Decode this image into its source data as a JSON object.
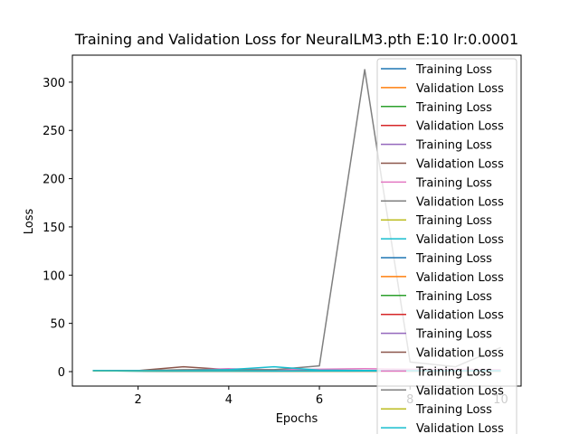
{
  "chart_data": {
    "type": "line",
    "title": "Training and Validation Loss for NeuralLM3.pth E:10 lr:0.0001",
    "xlabel": "Epochs",
    "ylabel": "Loss",
    "xlim": [
      0.55,
      10.45
    ],
    "ylim": [
      -15,
      328
    ],
    "xticks": [
      2,
      4,
      6,
      8,
      10
    ],
    "yticks": [
      0,
      50,
      100,
      150,
      200,
      250,
      300
    ],
    "grid": false,
    "legend_position": "upper-right",
    "x": [
      1,
      2,
      3,
      4,
      5,
      6,
      7,
      8,
      9,
      10
    ],
    "series": [
      {
        "name": "Training Loss",
        "color": "#1f77b4",
        "values": [
          0.8,
          0.6,
          0.5,
          0.5,
          0.4,
          0.4,
          0.4,
          0.4,
          0.4,
          0.4
        ]
      },
      {
        "name": "Validation Loss",
        "color": "#ff7f0e",
        "values": [
          0.9,
          0.7,
          0.6,
          0.6,
          0.5,
          0.5,
          0.5,
          0.5,
          0.5,
          0.5
        ]
      },
      {
        "name": "Training Loss",
        "color": "#2ca02c",
        "values": [
          0.7,
          0.6,
          0.5,
          0.5,
          0.5,
          0.4,
          0.4,
          0.4,
          0.4,
          0.4
        ]
      },
      {
        "name": "Validation Loss",
        "color": "#d62728",
        "values": [
          0.9,
          0.8,
          0.7,
          0.7,
          0.6,
          0.6,
          0.6,
          0.6,
          0.6,
          0.6
        ]
      },
      {
        "name": "Training Loss",
        "color": "#9467bd",
        "values": [
          0.8,
          0.7,
          1.0,
          0.9,
          0.8,
          0.7,
          0.7,
          0.6,
          0.6,
          0.6
        ]
      },
      {
        "name": "Validation Loss",
        "color": "#8c564b",
        "values": [
          1.0,
          1.0,
          5.0,
          2.0,
          1.5,
          1.5,
          1.2,
          1.2,
          1.1,
          1.0
        ]
      },
      {
        "name": "Training Loss",
        "color": "#e377c2",
        "values": [
          0.9,
          0.8,
          1.5,
          3.0,
          2.0,
          2.5,
          3.0,
          2.5,
          2.5,
          2.0
        ]
      },
      {
        "name": "Validation Loss",
        "color": "#7f7f7f",
        "values": [
          1.0,
          1.0,
          2.0,
          2.0,
          2.0,
          6.0,
          313.0,
          10.0,
          5.0,
          25.0
        ]
      },
      {
        "name": "Training Loss",
        "color": "#bcbd22",
        "values": [
          0.8,
          0.7,
          0.6,
          0.6,
          0.6,
          0.5,
          0.5,
          0.5,
          0.5,
          0.5
        ]
      },
      {
        "name": "Validation Loss",
        "color": "#17becf",
        "values": [
          1.0,
          0.9,
          1.0,
          2.0,
          5.0,
          1.5,
          1.2,
          1.0,
          1.0,
          1.0
        ]
      },
      {
        "name": "Training Loss",
        "color": "#1f77b4",
        "values": [
          0.7,
          0.6,
          0.5,
          0.5,
          0.5,
          0.4,
          0.4,
          0.4,
          0.4,
          0.4
        ]
      },
      {
        "name": "Validation Loss",
        "color": "#ff7f0e",
        "values": [
          0.9,
          0.8,
          0.7,
          0.7,
          0.7,
          0.6,
          0.6,
          0.6,
          0.6,
          0.6
        ]
      },
      {
        "name": "Training Loss",
        "color": "#2ca02c",
        "values": [
          0.8,
          0.7,
          0.6,
          0.6,
          0.5,
          0.5,
          0.5,
          0.5,
          0.5,
          0.5
        ]
      },
      {
        "name": "Validation Loss",
        "color": "#d62728",
        "values": [
          0.9,
          0.8,
          0.8,
          0.7,
          0.7,
          0.7,
          0.6,
          0.6,
          0.6,
          0.6
        ]
      },
      {
        "name": "Training Loss",
        "color": "#9467bd",
        "values": [
          0.8,
          0.7,
          0.6,
          0.6,
          0.6,
          0.5,
          0.5,
          0.5,
          0.5,
          0.5
        ]
      },
      {
        "name": "Validation Loss",
        "color": "#8c564b",
        "values": [
          1.0,
          0.9,
          0.8,
          0.8,
          0.8,
          0.7,
          0.7,
          0.7,
          0.7,
          0.7
        ]
      },
      {
        "name": "Training Loss",
        "color": "#e377c2",
        "values": [
          0.8,
          0.7,
          0.6,
          0.6,
          0.6,
          0.6,
          0.5,
          0.5,
          0.5,
          0.5
        ]
      },
      {
        "name": "Validation Loss",
        "color": "#7f7f7f",
        "values": [
          1.0,
          0.9,
          0.9,
          0.8,
          0.8,
          0.8,
          0.7,
          0.7,
          0.7,
          0.7
        ]
      },
      {
        "name": "Training Loss",
        "color": "#bcbd22",
        "values": [
          0.8,
          0.7,
          0.6,
          0.6,
          0.6,
          0.5,
          0.5,
          0.5,
          0.5,
          0.5
        ]
      },
      {
        "name": "Validation Loss",
        "color": "#17becf",
        "values": [
          1.0,
          0.9,
          0.8,
          0.8,
          0.7,
          0.7,
          0.7,
          0.7,
          0.7,
          0.7
        ]
      }
    ]
  }
}
